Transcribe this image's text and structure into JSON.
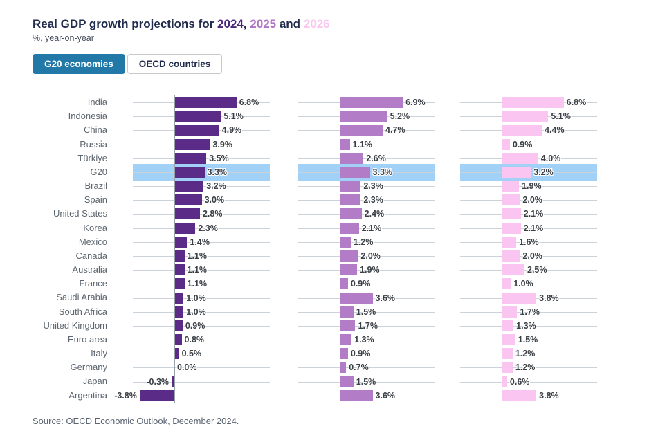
{
  "header": {
    "title_prefix": "Real GDP growth projections for ",
    "year1": "2024",
    "sep1": ", ",
    "year2": "2025",
    "sep2": " and ",
    "year3": "2026",
    "subtitle": "%, year-on-year"
  },
  "tabs": [
    {
      "label": "G20 economies",
      "active": true
    },
    {
      "label": "OECD countries",
      "active": false
    }
  ],
  "source": {
    "prefix": "Source: ",
    "link_text": "OECD Economic Outlook, December 2024."
  },
  "colors": {
    "title_text": "#212b4c",
    "year_2024": "#4a2478",
    "year_2025": "#b173c4",
    "year_2026": "#f9c7ef",
    "tab_active_bg": "#2279a8",
    "gridline": "#ccd2da",
    "zero_axis": "#9aa1ac",
    "country_label": "#5d6670",
    "value_label": "#3a3f45"
  },
  "chart_data": {
    "type": "bar",
    "orientation": "horizontal",
    "title": "Real GDP growth projections for 2024, 2025 and 2026",
    "subtitle": "%, year-on-year",
    "value_unit": "%",
    "xlim": [
      -4.5,
      10.5
    ],
    "grid": true,
    "legend_position": "none (years color-coded in title)",
    "categories": [
      "India",
      "Indonesia",
      "China",
      "Russia",
      "Türkiye",
      "G20",
      "Brazil",
      "Spain",
      "United States",
      "Korea",
      "Mexico",
      "Canada",
      "Australia",
      "France",
      "Saudi Arabia",
      "South Africa",
      "United Kingdom",
      "Euro area",
      "Italy",
      "Germany",
      "Japan",
      "Argentina"
    ],
    "series": [
      {
        "name": "2024",
        "color": "#5b2c87",
        "values": [
          6.8,
          5.1,
          4.9,
          3.9,
          3.5,
          3.3,
          3.2,
          3.0,
          2.8,
          2.3,
          1.4,
          1.1,
          1.1,
          1.1,
          1.0,
          1.0,
          0.9,
          0.8,
          0.5,
          0.0,
          -0.3,
          -3.8
        ]
      },
      {
        "name": "2025",
        "color": "#b37cc7",
        "values": [
          6.9,
          5.2,
          4.7,
          1.1,
          2.6,
          3.3,
          2.3,
          2.3,
          2.4,
          2.1,
          1.2,
          2.0,
          1.9,
          0.9,
          3.6,
          1.5,
          1.7,
          1.3,
          0.9,
          0.7,
          1.5,
          3.6
        ]
      },
      {
        "name": "2026",
        "color": "#fbc5f1",
        "values": [
          6.8,
          5.1,
          4.4,
          0.9,
          4.0,
          3.2,
          1.9,
          2.0,
          2.1,
          2.1,
          1.6,
          2.0,
          2.5,
          1.0,
          3.8,
          1.7,
          1.3,
          1.5,
          1.2,
          1.2,
          0.6,
          3.8
        ]
      }
    ],
    "highlight_category": "G20",
    "highlight_color": "#a2d1f7"
  }
}
